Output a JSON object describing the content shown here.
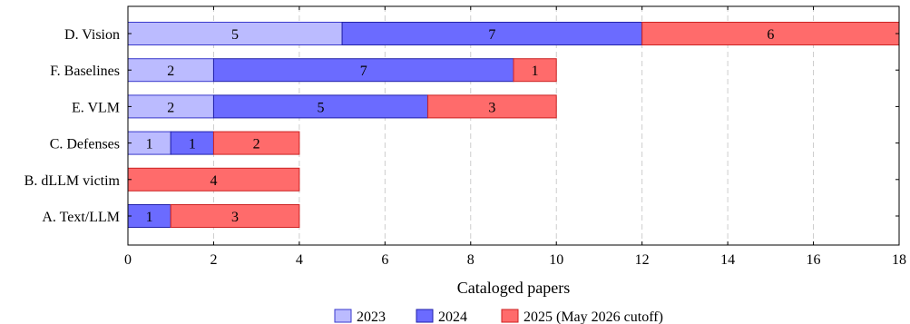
{
  "chart_data": {
    "type": "bar",
    "orientation": "horizontal",
    "stacked": true,
    "title": "",
    "xlabel": "Cataloged papers",
    "ylabel": "",
    "xlim": [
      0,
      18
    ],
    "x_ticks": [
      0,
      2,
      4,
      6,
      8,
      10,
      12,
      14,
      16,
      18
    ],
    "grid": "vertical dashed",
    "legend_position": "bottom-center",
    "categories": [
      "D. Vision",
      "F. Baselines",
      "E. VLM",
      "C. Defenses",
      "B. dLLM victim",
      "A. Text/LLM"
    ],
    "series": [
      {
        "name": "2023",
        "color": "#bbbbff",
        "border": "#3a3acc",
        "values": [
          5,
          2,
          2,
          1,
          0,
          0
        ]
      },
      {
        "name": "2024",
        "color": "#6b6bff",
        "border": "#2222aa",
        "values": [
          7,
          7,
          5,
          1,
          0,
          1
        ]
      },
      {
        "name": "2025 (May 2026 cutoff)",
        "color": "#ff6b6b",
        "border": "#cc2222",
        "values": [
          6,
          1,
          3,
          2,
          4,
          3
        ]
      }
    ]
  }
}
